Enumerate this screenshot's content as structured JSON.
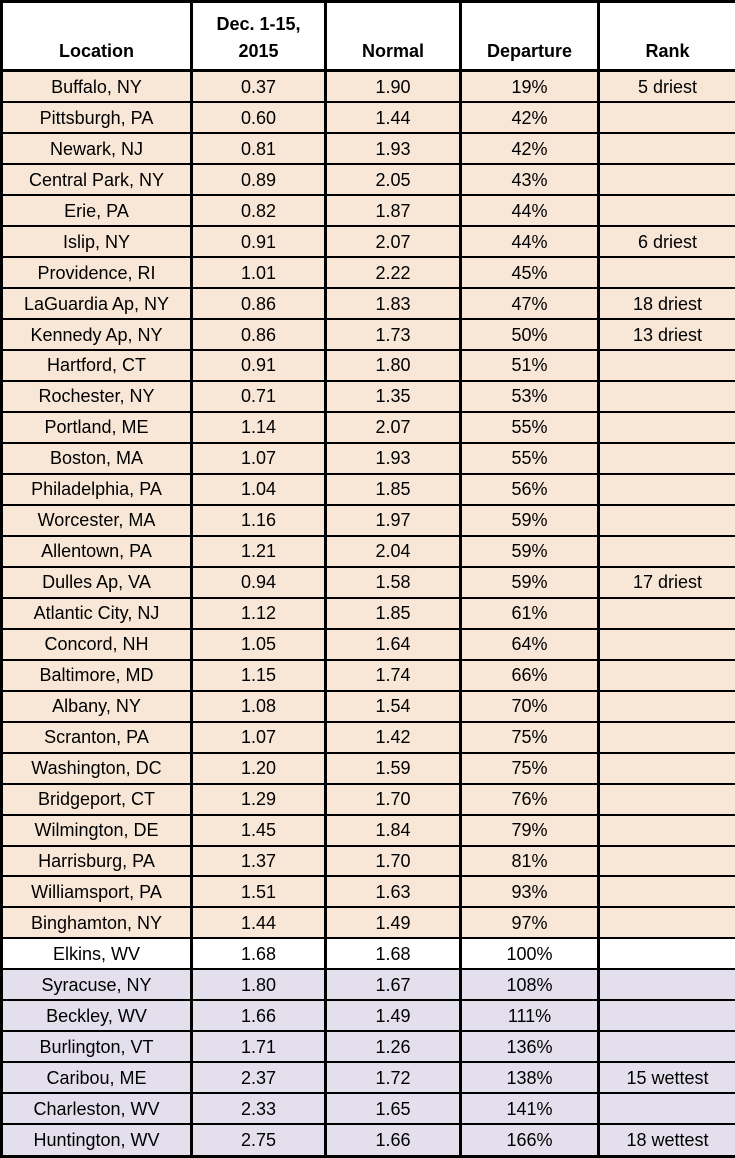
{
  "chart_data": {
    "type": "table",
    "columns": [
      "Location",
      "Dec. 1-15, 2015",
      "Normal",
      "Departure",
      "Rank"
    ],
    "rows": [
      {
        "location": "Buffalo, NY",
        "observed": "0.37",
        "normal": "1.90",
        "departure": "19%",
        "rank": "5 driest",
        "category": "dry"
      },
      {
        "location": "Pittsburgh, PA",
        "observed": "0.60",
        "normal": "1.44",
        "departure": "42%",
        "rank": "",
        "category": "dry"
      },
      {
        "location": "Newark, NJ",
        "observed": "0.81",
        "normal": "1.93",
        "departure": "42%",
        "rank": "",
        "category": "dry"
      },
      {
        "location": "Central Park, NY",
        "observed": "0.89",
        "normal": "2.05",
        "departure": "43%",
        "rank": "",
        "category": "dry"
      },
      {
        "location": "Erie, PA",
        "observed": "0.82",
        "normal": "1.87",
        "departure": "44%",
        "rank": "",
        "category": "dry"
      },
      {
        "location": "Islip, NY",
        "observed": "0.91",
        "normal": "2.07",
        "departure": "44%",
        "rank": "6 driest",
        "category": "dry"
      },
      {
        "location": "Providence, RI",
        "observed": "1.01",
        "normal": "2.22",
        "departure": "45%",
        "rank": "",
        "category": "dry"
      },
      {
        "location": "LaGuardia Ap, NY",
        "observed": "0.86",
        "normal": "1.83",
        "departure": "47%",
        "rank": "18 driest",
        "category": "dry"
      },
      {
        "location": "Kennedy Ap, NY",
        "observed": "0.86",
        "normal": "1.73",
        "departure": "50%",
        "rank": "13 driest",
        "category": "dry"
      },
      {
        "location": "Hartford, CT",
        "observed": "0.91",
        "normal": "1.80",
        "departure": "51%",
        "rank": "",
        "category": "dry"
      },
      {
        "location": "Rochester, NY",
        "observed": "0.71",
        "normal": "1.35",
        "departure": "53%",
        "rank": "",
        "category": "dry"
      },
      {
        "location": "Portland, ME",
        "observed": "1.14",
        "normal": "2.07",
        "departure": "55%",
        "rank": "",
        "category": "dry"
      },
      {
        "location": "Boston, MA",
        "observed": "1.07",
        "normal": "1.93",
        "departure": "55%",
        "rank": "",
        "category": "dry"
      },
      {
        "location": "Philadelphia, PA",
        "observed": "1.04",
        "normal": "1.85",
        "departure": "56%",
        "rank": "",
        "category": "dry"
      },
      {
        "location": "Worcester, MA",
        "observed": "1.16",
        "normal": "1.97",
        "departure": "59%",
        "rank": "",
        "category": "dry"
      },
      {
        "location": "Allentown, PA",
        "observed": "1.21",
        "normal": "2.04",
        "departure": "59%",
        "rank": "",
        "category": "dry"
      },
      {
        "location": "Dulles Ap, VA",
        "observed": "0.94",
        "normal": "1.58",
        "departure": "59%",
        "rank": "17 driest",
        "category": "dry"
      },
      {
        "location": "Atlantic City, NJ",
        "observed": "1.12",
        "normal": "1.85",
        "departure": "61%",
        "rank": "",
        "category": "dry"
      },
      {
        "location": "Concord, NH",
        "observed": "1.05",
        "normal": "1.64",
        "departure": "64%",
        "rank": "",
        "category": "dry"
      },
      {
        "location": "Baltimore, MD",
        "observed": "1.15",
        "normal": "1.74",
        "departure": "66%",
        "rank": "",
        "category": "dry"
      },
      {
        "location": "Albany, NY",
        "observed": "1.08",
        "normal": "1.54",
        "departure": "70%",
        "rank": "",
        "category": "dry"
      },
      {
        "location": "Scranton, PA",
        "observed": "1.07",
        "normal": "1.42",
        "departure": "75%",
        "rank": "",
        "category": "dry"
      },
      {
        "location": "Washington, DC",
        "observed": "1.20",
        "normal": "1.59",
        "departure": "75%",
        "rank": "",
        "category": "dry"
      },
      {
        "location": "Bridgeport, CT",
        "observed": "1.29",
        "normal": "1.70",
        "departure": "76%",
        "rank": "",
        "category": "dry"
      },
      {
        "location": "Wilmington, DE",
        "observed": "1.45",
        "normal": "1.84",
        "departure": "79%",
        "rank": "",
        "category": "dry"
      },
      {
        "location": "Harrisburg, PA",
        "observed": "1.37",
        "normal": "1.70",
        "departure": "81%",
        "rank": "",
        "category": "dry"
      },
      {
        "location": "Williamsport, PA",
        "observed": "1.51",
        "normal": "1.63",
        "departure": "93%",
        "rank": "",
        "category": "dry"
      },
      {
        "location": "Binghamton, NY",
        "observed": "1.44",
        "normal": "1.49",
        "departure": "97%",
        "rank": "",
        "category": "dry"
      },
      {
        "location": "Elkins, WV",
        "observed": "1.68",
        "normal": "1.68",
        "departure": "100%",
        "rank": "",
        "category": "near_normal"
      },
      {
        "location": "Syracuse, NY",
        "observed": "1.80",
        "normal": "1.67",
        "departure": "108%",
        "rank": "",
        "category": "wet"
      },
      {
        "location": "Beckley, WV",
        "observed": "1.66",
        "normal": "1.49",
        "departure": "111%",
        "rank": "",
        "category": "wet"
      },
      {
        "location": "Burlington, VT",
        "observed": "1.71",
        "normal": "1.26",
        "departure": "136%",
        "rank": "",
        "category": "wet"
      },
      {
        "location": "Caribou, ME",
        "observed": "2.37",
        "normal": "1.72",
        "departure": "138%",
        "rank": "15 wettest",
        "category": "wet"
      },
      {
        "location": "Charleston, WV",
        "observed": "2.33",
        "normal": "1.65",
        "departure": "141%",
        "rank": "",
        "category": "wet"
      },
      {
        "location": "Huntington, WV",
        "observed": "2.75",
        "normal": "1.66",
        "departure": "166%",
        "rank": "18 wettest",
        "category": "wet"
      }
    ],
    "category_colors": {
      "dry": "#F8E7D7",
      "near_normal": "#FFFFFF",
      "wet": "#E3DFED"
    },
    "border_color": "#000000",
    "header_background": "#FFFFFF",
    "legend_position": "none",
    "grid": true
  }
}
